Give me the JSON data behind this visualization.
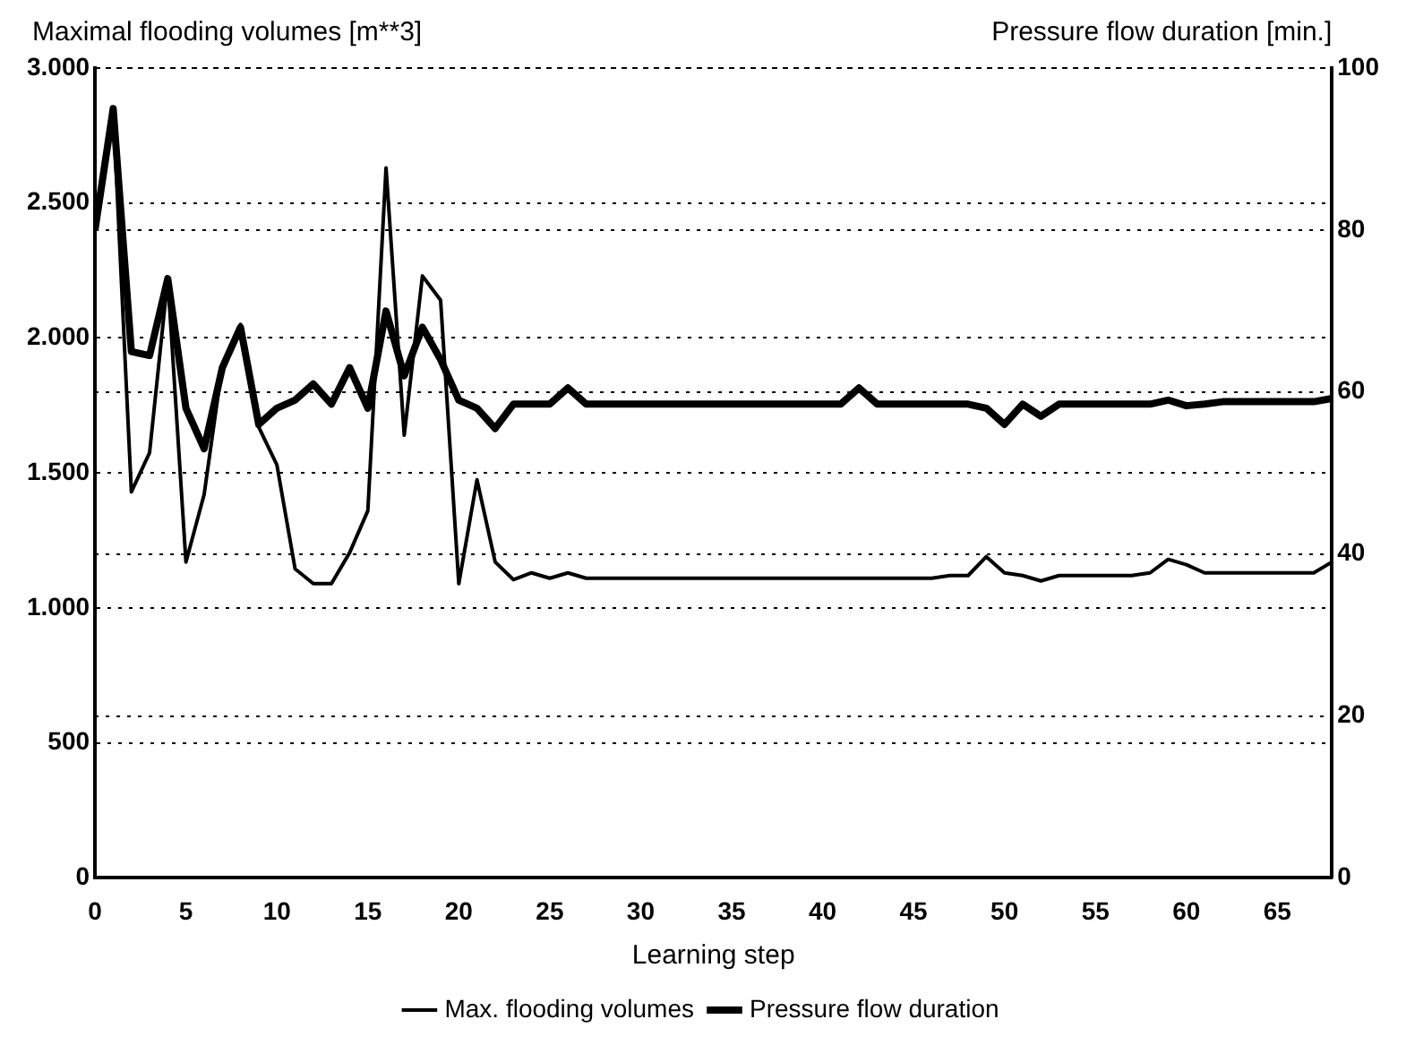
{
  "chart_data": {
    "type": "line",
    "xlabel": "Learning step",
    "ylabel": "Maximal flooding volumes [m**3]",
    "y2label": "Pressure flow duration [min.]",
    "x": [
      0,
      1,
      2,
      3,
      4,
      5,
      6,
      7,
      8,
      9,
      10,
      11,
      12,
      13,
      14,
      15,
      16,
      17,
      18,
      19,
      20,
      21,
      22,
      23,
      24,
      25,
      26,
      27,
      28,
      29,
      30,
      31,
      32,
      33,
      34,
      35,
      36,
      37,
      38,
      39,
      40,
      41,
      42,
      43,
      44,
      45,
      46,
      47,
      48,
      49,
      50,
      51,
      52,
      53,
      54,
      55,
      56,
      57,
      58,
      59,
      60,
      61,
      62,
      63,
      64,
      65,
      66,
      67,
      68
    ],
    "series": [
      {
        "name": "Max. flooding volumes",
        "color": "#000000",
        "values": [
          2400,
          2850,
          1430,
          1575,
          2220,
          1170,
          1420,
          1900,
          2050,
          1670,
          1530,
          1145,
          1090,
          1090,
          1205,
          1360,
          2630,
          1640,
          2230,
          2140,
          1090,
          1475,
          1170,
          1105,
          1130,
          1110,
          1130,
          1110,
          1110,
          1110,
          1110,
          1110,
          1110,
          1110,
          1110,
          1110,
          1110,
          1110,
          1110,
          1110,
          1110,
          1110,
          1110,
          1110,
          1110,
          1110,
          1110,
          1120,
          1120,
          1190,
          1130,
          1120,
          1100,
          1120,
          1120,
          1120,
          1120,
          1120,
          1130,
          1180,
          1160,
          1130,
          1130,
          1130,
          1130,
          1130,
          1130,
          1130,
          1170
        ]
      },
      {
        "name": "Pressure flow duration",
        "color": "#000000",
        "axis": "y2",
        "values": [
          80,
          95,
          65,
          64.5,
          74,
          58,
          53,
          63,
          68,
          56,
          58,
          59,
          61,
          58.5,
          63,
          58,
          70,
          62,
          68,
          64,
          59,
          58,
          55.5,
          58.5,
          58.5,
          58.5,
          60.5,
          58.5,
          58.5,
          58.5,
          58.5,
          58.5,
          58.5,
          58.5,
          58.5,
          58.5,
          58.5,
          58.5,
          58.5,
          58.5,
          58.5,
          58.5,
          60.5,
          58.5,
          58.5,
          58.5,
          58.5,
          58.5,
          58.5,
          58,
          56,
          58.5,
          57,
          58.5,
          58.5,
          58.5,
          58.5,
          58.5,
          58.5,
          59,
          58.3,
          58.5,
          58.8,
          58.8,
          58.8,
          58.8,
          58.8,
          58.8,
          59.2
        ]
      }
    ],
    "xlim": [
      0,
      68
    ],
    "xticks": [
      0,
      5,
      10,
      15,
      20,
      25,
      30,
      35,
      40,
      45,
      50,
      55,
      60,
      65
    ],
    "ylim": [
      0,
      3000
    ],
    "yticks": [
      {
        "value": 0,
        "label": "0"
      },
      {
        "value": 500,
        "label": "500"
      },
      {
        "value": 1000,
        "label": "1.000"
      },
      {
        "value": 1500,
        "label": "1.500"
      },
      {
        "value": 2000,
        "label": "2.000"
      },
      {
        "value": 2500,
        "label": "2.500"
      },
      {
        "value": 3000,
        "label": "3.000"
      }
    ],
    "y2lim": [
      0,
      100
    ],
    "y2ticks": [
      0,
      20,
      40,
      60,
      80,
      100
    ],
    "grid": "y",
    "legend": "bottom",
    "marker": "none",
    "line_style": "solid"
  }
}
